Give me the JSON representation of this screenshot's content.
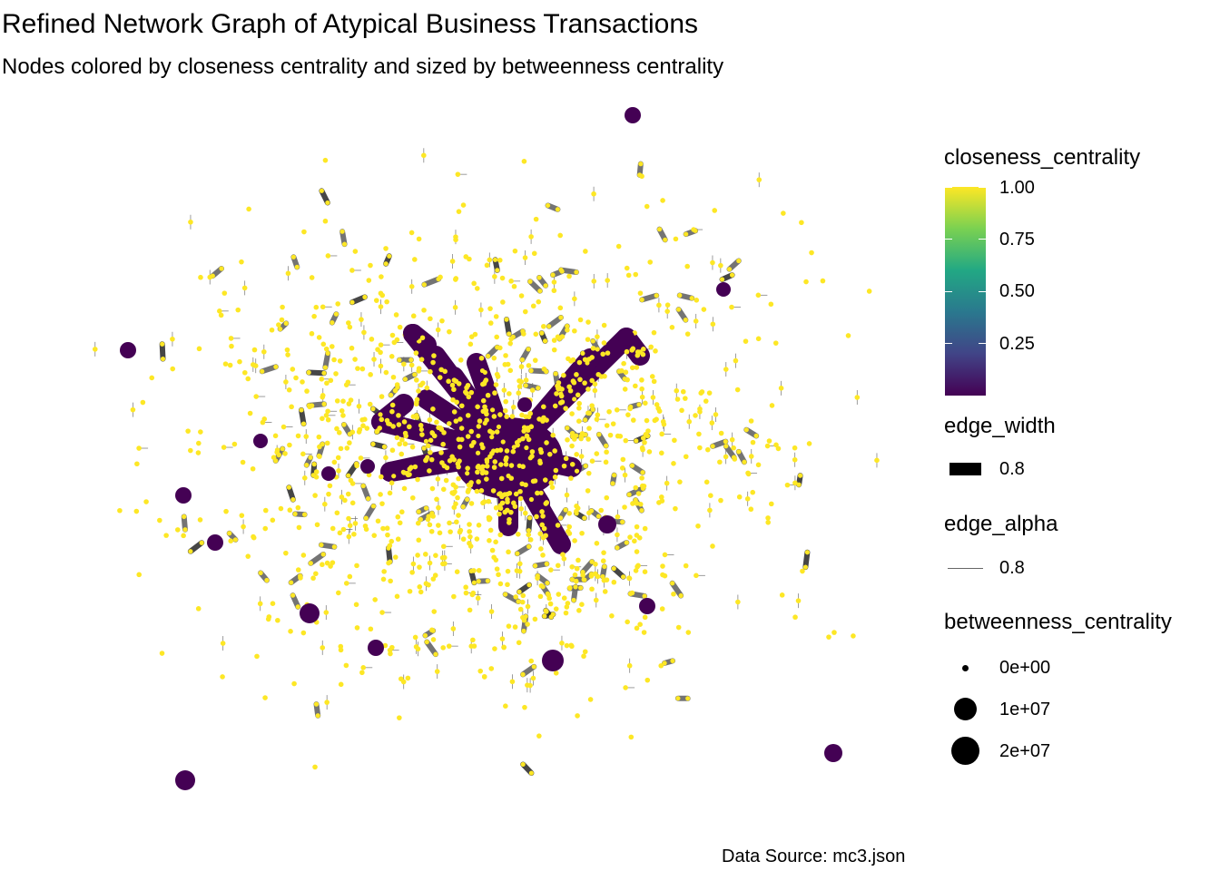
{
  "title": "Refined Network Graph of Atypical Business Transactions",
  "subtitle": "Nodes colored by closeness centrality and sized by betweenness centrality",
  "caption": "Data Source: mc3.json",
  "colors": {
    "low_closeness": "#440154",
    "high_closeness": "#FDE725",
    "edge": "#666666",
    "edge_dark": "#333333"
  },
  "legend": {
    "closeness": {
      "title": "closeness_centrality",
      "ticks": [
        "1.00",
        "0.75",
        "0.50",
        "0.25"
      ]
    },
    "edge_width": {
      "title": "edge_width",
      "label": "0.8"
    },
    "edge_alpha": {
      "title": "edge_alpha",
      "label": "0.8"
    },
    "betweenness": {
      "title": "betweenness_centrality",
      "labels": [
        "0e+00",
        "1e+07",
        "2e+07"
      ]
    }
  },
  "chart_data": {
    "type": "scatter",
    "kind": "network graph",
    "title": "Refined Network Graph of Atypical Business Transactions",
    "subtitle": "Nodes colored by closeness centrality and sized by betweenness centrality",
    "node_color": "closeness_centrality (viridis, 0 to 1.00)",
    "node_size": "betweenness_centrality (0e+00 to 2e+07)",
    "components": "one large dense low-closeness hub cluster near the center plus several hundred small high-closeness components (pairs and dyads)",
    "isolated_high_betweenness_nodes_approx": 18,
    "small_component_nodes_approx": 1200
  }
}
